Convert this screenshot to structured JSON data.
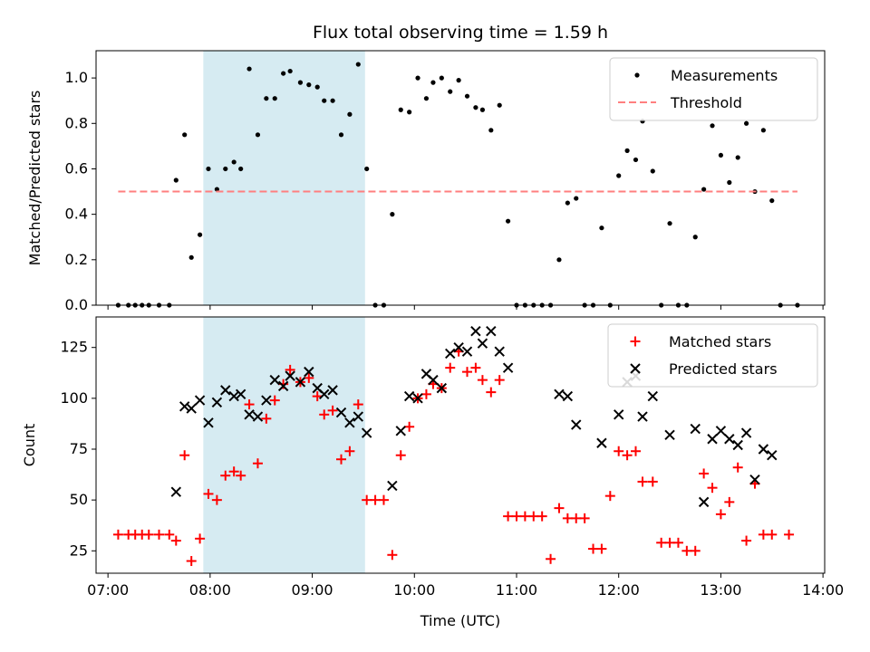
{
  "chart_data": [
    {
      "type": "scatter",
      "title": "Flux total observing time = 1.59 h",
      "ylabel": "Matched/Predicted stars",
      "xlabel": "",
      "xlim": [
        "06:53",
        "14:01"
      ],
      "ylim": [
        0,
        1.12
      ],
      "yticks": [
        "0.0",
        "0.2",
        "0.4",
        "0.6",
        "0.8",
        "1.0"
      ],
      "highlight_span": [
        "07:56",
        "09:31"
      ],
      "legend": {
        "position": "top-right",
        "entries": [
          "Measurements",
          "Threshold"
        ]
      },
      "series": [
        {
          "name": "Measurements",
          "marker": "dot",
          "color": "#000000",
          "points": [
            [
              "07:06",
              0
            ],
            [
              "07:12",
              0
            ],
            [
              "07:16",
              0
            ],
            [
              "07:20",
              0
            ],
            [
              "07:24",
              0
            ],
            [
              "07:30",
              0
            ],
            [
              "07:36",
              0
            ],
            [
              "07:40",
              0.55
            ],
            [
              "07:45",
              0.75
            ],
            [
              "07:49",
              0.21
            ],
            [
              "07:54",
              0.31
            ],
            [
              "07:59",
              0.6
            ],
            [
              "08:04",
              0.51
            ],
            [
              "08:09",
              0.6
            ],
            [
              "08:14",
              0.63
            ],
            [
              "08:18",
              0.6
            ],
            [
              "08:23",
              1.04
            ],
            [
              "08:28",
              0.75
            ],
            [
              "08:33",
              0.91
            ],
            [
              "08:38",
              0.91
            ],
            [
              "08:43",
              1.02
            ],
            [
              "08:47",
              1.03
            ],
            [
              "08:53",
              0.98
            ],
            [
              "08:58",
              0.97
            ],
            [
              "09:03",
              0.96
            ],
            [
              "09:07",
              0.9
            ],
            [
              "09:12",
              0.9
            ],
            [
              "09:17",
              0.75
            ],
            [
              "09:22",
              0.84
            ],
            [
              "09:27",
              1.06
            ],
            [
              "09:32",
              0.6
            ],
            [
              "09:37",
              0
            ],
            [
              "09:42",
              0
            ],
            [
              "09:47",
              0.4
            ],
            [
              "09:52",
              0.86
            ],
            [
              "09:57",
              0.85
            ],
            [
              "10:02",
              1.0
            ],
            [
              "10:07",
              0.91
            ],
            [
              "10:11",
              0.98
            ],
            [
              "10:16",
              1.0
            ],
            [
              "10:21",
              0.94
            ],
            [
              "10:26",
              0.99
            ],
            [
              "10:31",
              0.92
            ],
            [
              "10:36",
              0.87
            ],
            [
              "10:40",
              0.86
            ],
            [
              "10:45",
              0.77
            ],
            [
              "10:50",
              0.88
            ],
            [
              "10:55",
              0.37
            ],
            [
              "11:00",
              0
            ],
            [
              "11:05",
              0
            ],
            [
              "11:10",
              0
            ],
            [
              "11:15",
              0
            ],
            [
              "11:20",
              0
            ],
            [
              "11:25",
              0.2
            ],
            [
              "11:30",
              0.45
            ],
            [
              "11:35",
              0.47
            ],
            [
              "11:40",
              0
            ],
            [
              "11:45",
              0
            ],
            [
              "11:50",
              0.34
            ],
            [
              "11:55",
              0
            ],
            [
              "12:00",
              0.57
            ],
            [
              "12:05",
              0.68
            ],
            [
              "12:10",
              0.64
            ],
            [
              "12:14",
              0.81
            ],
            [
              "12:20",
              0.59
            ],
            [
              "12:25",
              0
            ],
            [
              "12:30",
              0.36
            ],
            [
              "12:35",
              0
            ],
            [
              "12:40",
              0
            ],
            [
              "12:45",
              0.3
            ],
            [
              "12:50",
              0.51
            ],
            [
              "12:55",
              0.79
            ],
            [
              "13:00",
              0.66
            ],
            [
              "13:05",
              0.54
            ],
            [
              "13:10",
              0.65
            ],
            [
              "13:15",
              0.8
            ],
            [
              "13:20",
              0.5
            ],
            [
              "13:25",
              0.77
            ],
            [
              "13:30",
              0.46
            ],
            [
              "13:35",
              0
            ],
            [
              "13:45",
              0
            ]
          ]
        },
        {
          "name": "Threshold",
          "style": "dashed-line",
          "color": "#ff7f7f",
          "points": [
            [
              "07:06",
              0.5
            ],
            [
              "13:45",
              0.5
            ]
          ]
        }
      ]
    },
    {
      "type": "scatter",
      "title": "",
      "ylabel": "Count",
      "xlabel": "Time (UTC)",
      "xlim": [
        "06:53",
        "14:01"
      ],
      "ylim": [
        14,
        140
      ],
      "yticks": [
        "25",
        "50",
        "75",
        "100",
        "125"
      ],
      "xticks": [
        "07:00",
        "08:00",
        "09:00",
        "10:00",
        "11:00",
        "12:00",
        "13:00",
        "14:00"
      ],
      "highlight_span": [
        "07:56",
        "09:31"
      ],
      "legend": {
        "position": "top-right",
        "entries": [
          "Matched stars",
          "Predicted stars"
        ]
      },
      "series": [
        {
          "name": "Matched stars",
          "marker": "plus",
          "color": "#ff0000",
          "points": [
            [
              "07:06",
              33
            ],
            [
              "07:12",
              33
            ],
            [
              "07:16",
              33
            ],
            [
              "07:20",
              33
            ],
            [
              "07:24",
              33
            ],
            [
              "07:30",
              33
            ],
            [
              "07:36",
              33
            ],
            [
              "07:40",
              30
            ],
            [
              "07:45",
              72
            ],
            [
              "07:49",
              20
            ],
            [
              "07:54",
              31
            ],
            [
              "07:59",
              53
            ],
            [
              "08:04",
              50
            ],
            [
              "08:09",
              62
            ],
            [
              "08:14",
              64
            ],
            [
              "08:18",
              62
            ],
            [
              "08:23",
              97
            ],
            [
              "08:28",
              68
            ],
            [
              "08:33",
              90
            ],
            [
              "08:38",
              99
            ],
            [
              "08:43",
              107
            ],
            [
              "08:47",
              114
            ],
            [
              "08:53",
              108
            ],
            [
              "08:58",
              110
            ],
            [
              "09:03",
              101
            ],
            [
              "09:07",
              92
            ],
            [
              "09:12",
              94
            ],
            [
              "09:17",
              70
            ],
            [
              "09:22",
              74
            ],
            [
              "09:27",
              97
            ],
            [
              "09:32",
              50
            ],
            [
              "09:37",
              50
            ],
            [
              "09:42",
              50
            ],
            [
              "09:47",
              23
            ],
            [
              "09:52",
              72
            ],
            [
              "09:57",
              86
            ],
            [
              "10:02",
              100
            ],
            [
              "10:07",
              102
            ],
            [
              "10:11",
              107
            ],
            [
              "10:16",
              105
            ],
            [
              "10:21",
              115
            ],
            [
              "10:26",
              123
            ],
            [
              "10:31",
              113
            ],
            [
              "10:36",
              115
            ],
            [
              "10:40",
              109
            ],
            [
              "10:45",
              103
            ],
            [
              "10:50",
              109
            ],
            [
              "10:55",
              42
            ],
            [
              "11:00",
              42
            ],
            [
              "11:05",
              42
            ],
            [
              "11:10",
              42
            ],
            [
              "11:15",
              42
            ],
            [
              "11:20",
              21
            ],
            [
              "11:25",
              46
            ],
            [
              "11:30",
              41
            ],
            [
              "11:35",
              41
            ],
            [
              "11:40",
              41
            ],
            [
              "11:45",
              26
            ],
            [
              "11:50",
              26
            ],
            [
              "11:55",
              52
            ],
            [
              "12:00",
              74
            ],
            [
              "12:05",
              72
            ],
            [
              "12:10",
              74
            ],
            [
              "12:14",
              59
            ],
            [
              "12:20",
              59
            ],
            [
              "12:25",
              29
            ],
            [
              "12:30",
              29
            ],
            [
              "12:35",
              29
            ],
            [
              "12:40",
              25
            ],
            [
              "12:45",
              25
            ],
            [
              "12:50",
              63
            ],
            [
              "12:55",
              56
            ],
            [
              "13:00",
              43
            ],
            [
              "13:05",
              49
            ],
            [
              "13:10",
              66
            ],
            [
              "13:15",
              30
            ],
            [
              "13:20",
              58
            ],
            [
              "13:25",
              33
            ],
            [
              "13:30",
              33
            ],
            [
              "13:40",
              33
            ]
          ]
        },
        {
          "name": "Predicted stars",
          "marker": "x",
          "color": "#000000",
          "points": [
            [
              "07:40",
              54
            ],
            [
              "07:45",
              96
            ],
            [
              "07:49",
              95
            ],
            [
              "07:54",
              99
            ],
            [
              "07:59",
              88
            ],
            [
              "08:04",
              98
            ],
            [
              "08:09",
              104
            ],
            [
              "08:14",
              101
            ],
            [
              "08:18",
              102
            ],
            [
              "08:23",
              92
            ],
            [
              "08:28",
              91
            ],
            [
              "08:33",
              99
            ],
            [
              "08:38",
              109
            ],
            [
              "08:43",
              106
            ],
            [
              "08:47",
              111
            ],
            [
              "08:53",
              108
            ],
            [
              "08:58",
              113
            ],
            [
              "09:03",
              105
            ],
            [
              "09:07",
              102
            ],
            [
              "09:12",
              104
            ],
            [
              "09:17",
              93
            ],
            [
              "09:22",
              88
            ],
            [
              "09:27",
              91
            ],
            [
              "09:32",
              83
            ],
            [
              "09:47",
              57
            ],
            [
              "09:52",
              84
            ],
            [
              "09:57",
              101
            ],
            [
              "10:02",
              100
            ],
            [
              "10:07",
              112
            ],
            [
              "10:11",
              109
            ],
            [
              "10:16",
              105
            ],
            [
              "10:21",
              122
            ],
            [
              "10:26",
              125
            ],
            [
              "10:31",
              123
            ],
            [
              "10:36",
              133
            ],
            [
              "10:40",
              127
            ],
            [
              "10:45",
              133
            ],
            [
              "10:50",
              123
            ],
            [
              "10:55",
              115
            ],
            [
              "11:25",
              102
            ],
            [
              "11:30",
              101
            ],
            [
              "11:35",
              87
            ],
            [
              "11:50",
              78
            ],
            [
              "12:00",
              92
            ],
            [
              "12:05",
              108
            ],
            [
              "12:10",
              111
            ],
            [
              "12:14",
              91
            ],
            [
              "12:20",
              101
            ],
            [
              "12:30",
              82
            ],
            [
              "12:45",
              85
            ],
            [
              "12:50",
              49
            ],
            [
              "12:55",
              80
            ],
            [
              "13:00",
              84
            ],
            [
              "13:05",
              80
            ],
            [
              "13:10",
              77
            ],
            [
              "13:15",
              83
            ],
            [
              "13:20",
              60
            ],
            [
              "13:25",
              75
            ],
            [
              "13:30",
              72
            ]
          ]
        }
      ]
    }
  ]
}
